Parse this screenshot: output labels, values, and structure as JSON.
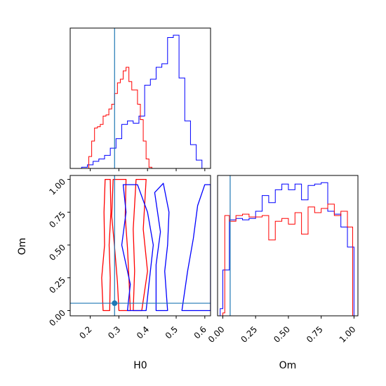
{
  "chart_data": [
    {
      "type": "histogram",
      "panel": "H0 marginal",
      "xlim": [
        0.13,
        0.62
      ],
      "truth": 0.285,
      "y_ticks_shown": false,
      "x_tick_labels_shown": false,
      "series": [
        {
          "name": "",
          "color": "#0000ff",
          "edges": [
            0.17,
            0.19,
            0.21,
            0.23,
            0.25,
            0.27,
            0.29,
            0.31,
            0.33,
            0.35,
            0.37,
            0.39,
            0.41,
            0.43,
            0.45,
            0.47,
            0.49,
            0.51,
            0.53,
            0.55,
            0.57,
            0.59,
            0.61
          ],
          "counts": [
            1,
            3,
            6,
            8,
            11,
            17,
            25,
            37,
            40,
            38,
            44,
            70,
            75,
            85,
            88,
            110,
            112,
            76,
            40,
            20,
            7,
            0
          ]
        },
        {
          "name": "",
          "color": "#ff0000",
          "edges": [
            0.195,
            0.205,
            0.215,
            0.225,
            0.235,
            0.245,
            0.255,
            0.265,
            0.275,
            0.285,
            0.295,
            0.305,
            0.315,
            0.325,
            0.335,
            0.345,
            0.355,
            0.365,
            0.375,
            0.385,
            0.395,
            0.405,
            0.415
          ],
          "counts": [
            10,
            23,
            34,
            35,
            37,
            44,
            45,
            50,
            54,
            63,
            72,
            75,
            82,
            85,
            73,
            66,
            66,
            54,
            41,
            23,
            8,
            1
          ]
        }
      ]
    },
    {
      "type": "contour",
      "panel": "H0 vs Om",
      "xlabel": "H0",
      "ylabel": "Om",
      "xlim": [
        0.13,
        0.62
      ],
      "ylim": [
        -0.04,
        1.03
      ],
      "x_ticks": [
        "0.2",
        "0.3",
        "0.4",
        "0.5",
        "0.6"
      ],
      "y_ticks": [
        "0.00",
        "0.25",
        "0.50",
        "0.75",
        "1.00"
      ],
      "truth": {
        "x": 0.285,
        "y": 0.056
      },
      "series": [
        {
          "name": "",
          "color": "#ff0000",
          "contours": [
            [
              [
                0.245,
                0.0
              ],
              [
                0.24,
                0.25
              ],
              [
                0.25,
                0.5
              ],
              [
                0.248,
                0.75
              ],
              [
                0.252,
                1.0
              ],
              [
                0.27,
                1.0
              ],
              [
                0.272,
                0.75
              ],
              [
                0.266,
                0.5
              ],
              [
                0.27,
                0.25
              ],
              [
                0.268,
                0.0
              ]
            ],
            [
              [
                0.3,
                0.0
              ],
              [
                0.295,
                0.22
              ],
              [
                0.285,
                0.48
              ],
              [
                0.275,
                0.72
              ],
              [
                0.28,
                1.0
              ],
              [
                0.325,
                1.0
              ],
              [
                0.322,
                0.72
              ],
              [
                0.33,
                0.48
              ],
              [
                0.335,
                0.25
              ],
              [
                0.34,
                0.0
              ]
            ],
            [
              [
                0.35,
                0.0
              ],
              [
                0.355,
                0.3
              ],
              [
                0.35,
                0.62
              ],
              [
                0.36,
                1.0
              ],
              [
                0.395,
                1.0
              ],
              [
                0.385,
                0.62
              ],
              [
                0.4,
                0.3
              ],
              [
                0.38,
                0.0
              ]
            ]
          ]
        },
        {
          "name": "",
          "color": "#0000ff",
          "contours": [
            [
              [
                0.43,
                0.0
              ],
              [
                0.43,
                0.35
              ],
              [
                0.445,
                0.6
              ],
              [
                0.425,
                0.9
              ],
              [
                0.455,
                0.97
              ],
              [
                0.475,
                0.75
              ],
              [
                0.47,
                0.5
              ],
              [
                0.46,
                0.3
              ],
              [
                0.47,
                0.0
              ]
            ],
            [
              [
                0.33,
                0.0
              ],
              [
                0.34,
                0.2
              ],
              [
                0.31,
                0.5
              ],
              [
                0.325,
                0.75
              ],
              [
                0.315,
                0.96
              ],
              [
                0.365,
                0.96
              ],
              [
                0.4,
                0.75
              ],
              [
                0.42,
                0.5
              ],
              [
                0.405,
                0.2
              ],
              [
                0.395,
                0.0
              ]
            ],
            [
              [
                0.52,
                0.0
              ],
              [
                0.54,
                0.3
              ],
              [
                0.56,
                0.55
              ],
              [
                0.575,
                0.8
              ],
              [
                0.6,
                0.96
              ],
              [
                0.62,
                0.96
              ],
              [
                0.62,
                0.0
              ]
            ]
          ]
        }
      ]
    },
    {
      "type": "histogram",
      "panel": "Om marginal",
      "xlabel": "Om",
      "xlim": [
        -0.04,
        1.03
      ],
      "x_ticks": [
        "0.00",
        "0.25",
        "0.50",
        "0.75",
        "1.00"
      ],
      "truth": 0.056,
      "y_ticks_shown": false,
      "series": [
        {
          "name": "",
          "color": "#0000ff",
          "edges": [
            -0.02,
            0.0,
            0.05,
            0.1,
            0.15,
            0.2,
            0.25,
            0.3,
            0.35,
            0.4,
            0.45,
            0.5,
            0.55,
            0.6,
            0.65,
            0.7,
            0.75,
            0.8,
            0.85,
            0.9,
            0.95,
            1.0
          ],
          "counts": [
            5,
            32,
            67,
            68,
            67,
            68,
            73,
            84,
            79,
            88,
            92,
            88,
            92,
            81,
            91,
            92,
            93,
            73,
            71,
            62,
            48
          ]
        },
        {
          "name": "",
          "color": "#ff0000",
          "edges": [
            0.0,
            0.015,
            0.05,
            0.1,
            0.15,
            0.2,
            0.25,
            0.3,
            0.35,
            0.4,
            0.45,
            0.5,
            0.55,
            0.6,
            0.65,
            0.7,
            0.75,
            0.8,
            0.85,
            0.9,
            0.95,
            0.99
          ],
          "counts": [
            2,
            70,
            66,
            70,
            71,
            69,
            69,
            70,
            53,
            66,
            68,
            64,
            72,
            57,
            76,
            72,
            75,
            78,
            70,
            73,
            62
          ]
        }
      ]
    }
  ]
}
